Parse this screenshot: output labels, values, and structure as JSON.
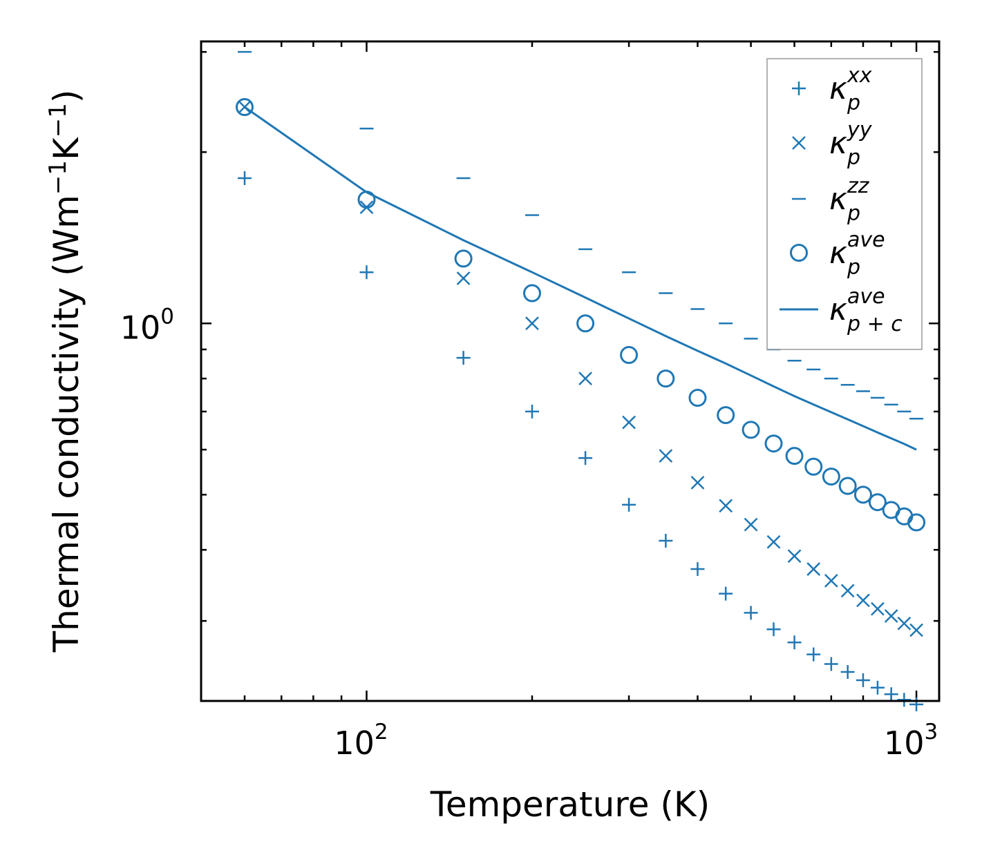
{
  "chart_data": {
    "type": "scatter",
    "xscale": "log",
    "yscale": "log",
    "xlim": [
      50,
      1100
    ],
    "ylim": [
      0.217,
      3.13
    ],
    "xlabel": "Temperature (K)",
    "ylabel": {
      "main": "Thermal conductivity (Wm",
      "sup1": "−1",
      "mid": "K",
      "sup2": "−1",
      "end": ")"
    },
    "xticks": [
      {
        "base": "10",
        "exp": "2",
        "value": 100
      },
      {
        "base": "10",
        "exp": "3",
        "value": 1000
      }
    ],
    "yticks": [
      {
        "base": "10",
        "exp": "0",
        "value": 1
      }
    ],
    "color": "#1f77b4",
    "legend_position": "upper right",
    "x": [
      60,
      100,
      150,
      200,
      250,
      300,
      350,
      400,
      450,
      500,
      550,
      600,
      650,
      700,
      750,
      800,
      850,
      900,
      950,
      1000
    ],
    "series": [
      {
        "name": "κp_xx",
        "label": "κ",
        "sub": "p",
        "sup": "xx",
        "marker": "plus",
        "values": [
          1.8,
          1.23,
          0.87,
          0.7,
          0.58,
          0.48,
          0.415,
          0.37,
          0.335,
          0.31,
          0.29,
          0.275,
          0.262,
          0.252,
          0.244,
          0.236,
          0.229,
          0.223,
          0.218,
          0.214
        ]
      },
      {
        "name": "κp_yy",
        "label": "κ",
        "sub": "p",
        "sup": "yy",
        "marker": "x",
        "values": [
          2.4,
          1.6,
          1.2,
          1.0,
          0.8,
          0.67,
          0.585,
          0.525,
          0.478,
          0.443,
          0.413,
          0.39,
          0.37,
          0.353,
          0.339,
          0.326,
          0.315,
          0.306,
          0.297,
          0.289
        ]
      },
      {
        "name": "κp_zz",
        "label": "κ",
        "sub": "p",
        "sup": "zz",
        "marker": "hline",
        "values": [
          3.0,
          2.2,
          1.8,
          1.55,
          1.35,
          1.23,
          1.13,
          1.06,
          1.0,
          0.94,
          0.9,
          0.86,
          0.83,
          0.8,
          0.78,
          0.76,
          0.74,
          0.72,
          0.7,
          0.68
        ]
      },
      {
        "name": "κp_ave",
        "label": "κ",
        "sub": "p",
        "sup": "ave",
        "marker": "circle",
        "values": [
          2.4,
          1.65,
          1.3,
          1.13,
          1.0,
          0.88,
          0.8,
          0.74,
          0.69,
          0.65,
          0.615,
          0.585,
          0.56,
          0.538,
          0.518,
          0.5,
          0.485,
          0.47,
          0.458,
          0.447
        ]
      },
      {
        "name": "κp+c_ave",
        "label": "κ",
        "sub": "p + c",
        "sup": "ave",
        "marker": "line",
        "values": [
          2.4,
          1.7,
          1.4,
          1.23,
          1.11,
          1.02,
          0.95,
          0.895,
          0.85,
          0.81,
          0.775,
          0.745,
          0.72,
          0.698,
          0.678,
          0.66,
          0.643,
          0.628,
          0.614,
          0.6
        ]
      }
    ]
  }
}
